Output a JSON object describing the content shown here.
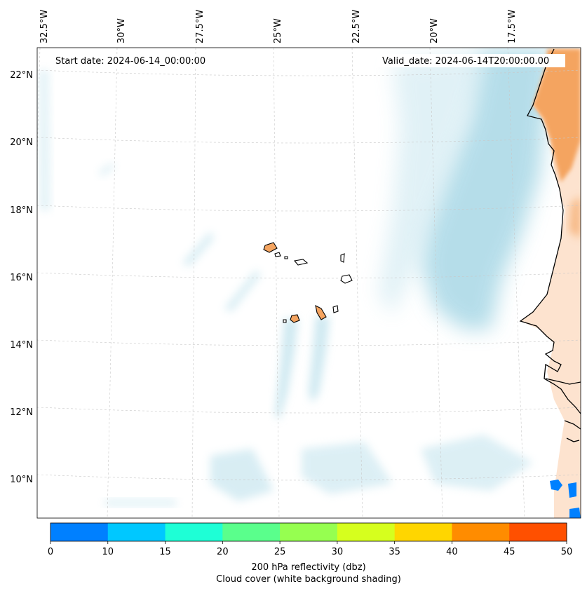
{
  "map": {
    "start_date_label": "Start date: 2024-06-14_00:00:00",
    "valid_date_label": "Valid_date: 2024-06-14T20:00:00.00",
    "lon_labels": [
      "32.5°W",
      "30°W",
      "27.5°W",
      "25°W",
      "22.5°W",
      "20°W",
      "17.5°W"
    ],
    "lat_labels": [
      "22°N",
      "20°N",
      "18°N",
      "16°N",
      "14°N",
      "12°N",
      "10°N"
    ],
    "colors": {
      "cloud": "#a9d8e6",
      "land_warm": "#f4a460",
      "land_light": "#fde3cf",
      "grid": "#c8c8c8",
      "coast": "#000000",
      "storm": "#0080ff"
    }
  },
  "colorbar": {
    "ticks": [
      "0",
      "10",
      "15",
      "20",
      "25",
      "30",
      "35",
      "40",
      "45",
      "50"
    ],
    "colors": [
      "#0080ff",
      "#00c8ff",
      "#1effd6",
      "#5aff8c",
      "#96ff50",
      "#d6ff1e",
      "#ffd600",
      "#ff8c00",
      "#ff5000"
    ],
    "label_line1": "200 hPa reflectivity (dbz)",
    "label_line2": "Cloud cover (white background shading)"
  }
}
